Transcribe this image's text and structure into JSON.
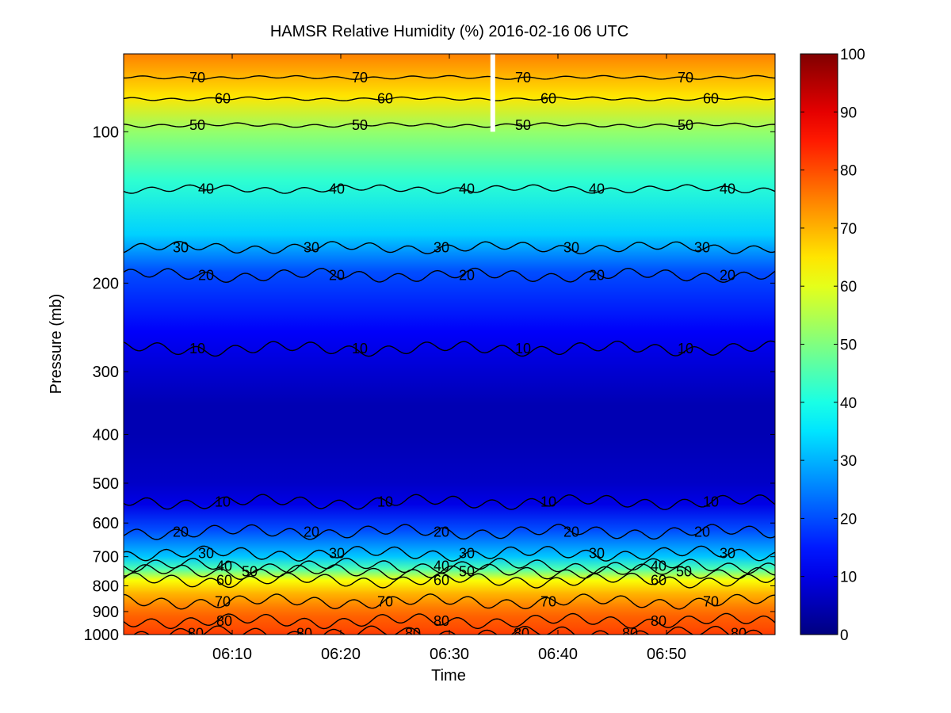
{
  "chart_data": {
    "type": "heatmap",
    "title": "HAMSR  Relative Humidity (%) 2016-02-16 06 UTC",
    "xlabel": "Time",
    "ylabel": "Pressure (mb)",
    "y_scale": "log",
    "y_direction": "reversed",
    "x_range": [
      "06:00",
      "07:00"
    ],
    "ylim": [
      1000,
      70
    ],
    "x_ticks": [
      "06:10",
      "06:20",
      "06:30",
      "06:40",
      "06:50"
    ],
    "y_ticks": [
      100,
      200,
      300,
      400,
      500,
      600,
      700,
      800,
      900,
      1000
    ],
    "colorbar": {
      "colormap": "jet",
      "min": 0,
      "max": 100,
      "ticks": [
        0,
        10,
        20,
        30,
        40,
        50,
        60,
        70,
        80,
        90,
        100
      ]
    },
    "data_gap_time": "06:34",
    "rh_profile": {
      "pressure_mb": [
        70,
        85,
        100,
        125,
        160,
        190,
        250,
        300,
        350,
        400,
        500,
        550,
        620,
        700,
        740,
        780,
        830,
        880,
        920,
        970,
        1000
      ],
      "rh_percent": [
        75,
        65,
        52,
        42,
        33,
        20,
        12,
        8,
        5,
        5,
        7,
        10,
        20,
        32,
        45,
        62,
        70,
        75,
        78,
        80,
        82
      ]
    },
    "contour_levels": [
      10,
      20,
      30,
      40,
      50,
      60,
      70,
      80
    ],
    "contours": [
      {
        "level": 70,
        "pressure_mb": 78,
        "labels": [
          "70",
          "70",
          "70",
          "70"
        ]
      },
      {
        "level": 60,
        "pressure_mb": 86,
        "labels": [
          "60",
          "60",
          "60",
          "60"
        ]
      },
      {
        "level": 50,
        "pressure_mb": 97,
        "labels": [
          "50",
          "50",
          "50",
          "50"
        ]
      },
      {
        "level": 40,
        "pressure_mb": 130,
        "labels": [
          "40",
          "40",
          "40",
          "40",
          "40"
        ]
      },
      {
        "level": 30,
        "pressure_mb": 170,
        "labels": [
          "30",
          "30",
          "30",
          "30",
          "30"
        ]
      },
      {
        "level": 20,
        "pressure_mb": 193,
        "labels": [
          "20",
          "20",
          "20",
          "20",
          "20"
        ]
      },
      {
        "level": 10,
        "pressure_mb": 270,
        "labels": [
          "10",
          "10",
          "10",
          "10"
        ]
      },
      {
        "level": 10,
        "pressure_mb": 545,
        "labels": [
          "10",
          "10",
          "10",
          "10"
        ]
      },
      {
        "level": 20,
        "pressure_mb": 625,
        "labels": [
          "20",
          "20",
          "20",
          "20",
          "20"
        ]
      },
      {
        "level": 30,
        "pressure_mb": 690,
        "labels": [
          "30",
          "30",
          "30",
          "30",
          "30"
        ]
      },
      {
        "level": 40,
        "pressure_mb": 730,
        "labels": [
          "40",
          "40",
          "40"
        ]
      },
      {
        "level": 50,
        "pressure_mb": 750,
        "labels": [
          "50",
          "50",
          "50"
        ]
      },
      {
        "level": 60,
        "pressure_mb": 780,
        "labels": [
          "60",
          "60",
          "60"
        ]
      },
      {
        "level": 70,
        "pressure_mb": 860,
        "labels": [
          "70",
          "70",
          "70",
          "70"
        ]
      },
      {
        "level": 80,
        "pressure_mb": 940,
        "labels": [
          "80",
          "80",
          "80"
        ]
      },
      {
        "level": 80,
        "pressure_mb": 995,
        "labels": [
          "80",
          "80",
          "80",
          "80",
          "80",
          "80"
        ]
      }
    ]
  }
}
